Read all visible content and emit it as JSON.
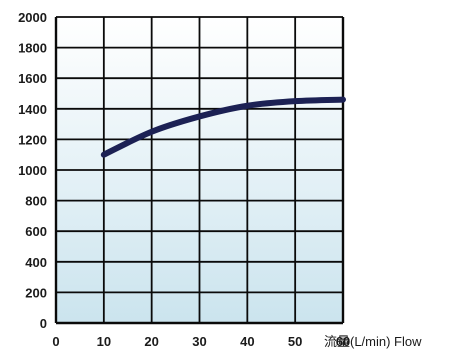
{
  "chart_data": {
    "type": "line",
    "title": "",
    "xlabel": "流量(L/min) Flow",
    "ylabel": "",
    "x_ticks": [
      0,
      10,
      20,
      30,
      40,
      50,
      60
    ],
    "y_ticks": [
      0,
      200,
      400,
      600,
      800,
      1000,
      1200,
      1400,
      1600,
      1800,
      2000
    ],
    "xlim": [
      0,
      60
    ],
    "ylim": [
      0,
      2000
    ],
    "grid": true,
    "series": [
      {
        "x": [
          10,
          20,
          30,
          40,
          50,
          60
        ],
        "y": [
          1100,
          1250,
          1350,
          1420,
          1450,
          1460
        ]
      }
    ],
    "colors": {
      "line": "#1c2154",
      "grid": "#0a0a0a",
      "background_top": "#ffffff",
      "background_bottom": "#cbe4ee"
    }
  }
}
